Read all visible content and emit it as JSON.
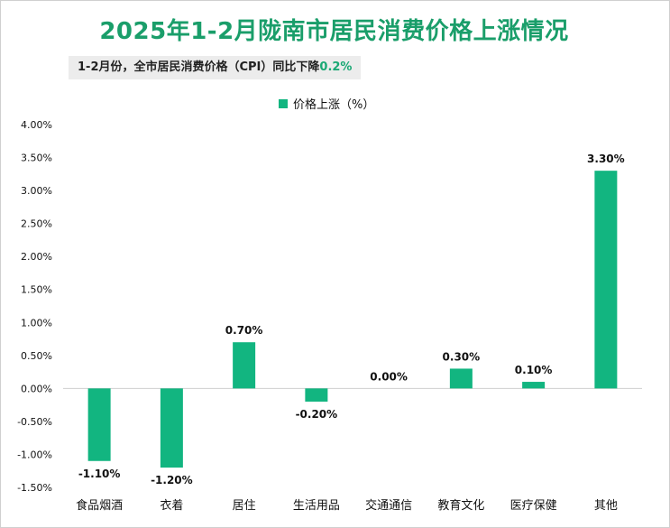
{
  "header": {
    "title": "2025年1-2月陇南市居民消费价格上涨情况",
    "subtitle_prefix": "1-2月份，全市居民消费价格（CPI）同比下降",
    "subtitle_value": "0.2%"
  },
  "colors": {
    "bar": "#12b580",
    "title": "#1a9e6a",
    "axis": "#cfcfcf"
  },
  "chart_data": {
    "type": "bar",
    "categories": [
      "食品烟酒",
      "衣着",
      "居住",
      "生活用品",
      "交通通信",
      "教育文化",
      "医疗保健",
      "其他"
    ],
    "series": [
      {
        "name": "价格上涨（%）",
        "values": [
          -1.1,
          -1.2,
          0.7,
          -0.2,
          0.0,
          0.3,
          0.1,
          3.3
        ]
      }
    ],
    "data_labels": [
      "-1.10%",
      "-1.20%",
      "0.70%",
      "-0.20%",
      "0.00%",
      "0.30%",
      "0.10%",
      "3.30%"
    ],
    "ylim": [
      -1.5,
      4.0
    ],
    "yticks": [
      4.0,
      3.5,
      3.0,
      2.5,
      2.0,
      1.5,
      1.0,
      0.5,
      0.0,
      -0.5,
      -1.0,
      -1.5
    ],
    "ytick_labels": [
      "4.00%",
      "3.50%",
      "3.00%",
      "2.50%",
      "2.00%",
      "1.50%",
      "1.00%",
      "0.50%",
      "0.00%",
      "-0.50%",
      "-1.00%",
      "-1.50%"
    ],
    "legend_position": "top",
    "grid": false
  }
}
